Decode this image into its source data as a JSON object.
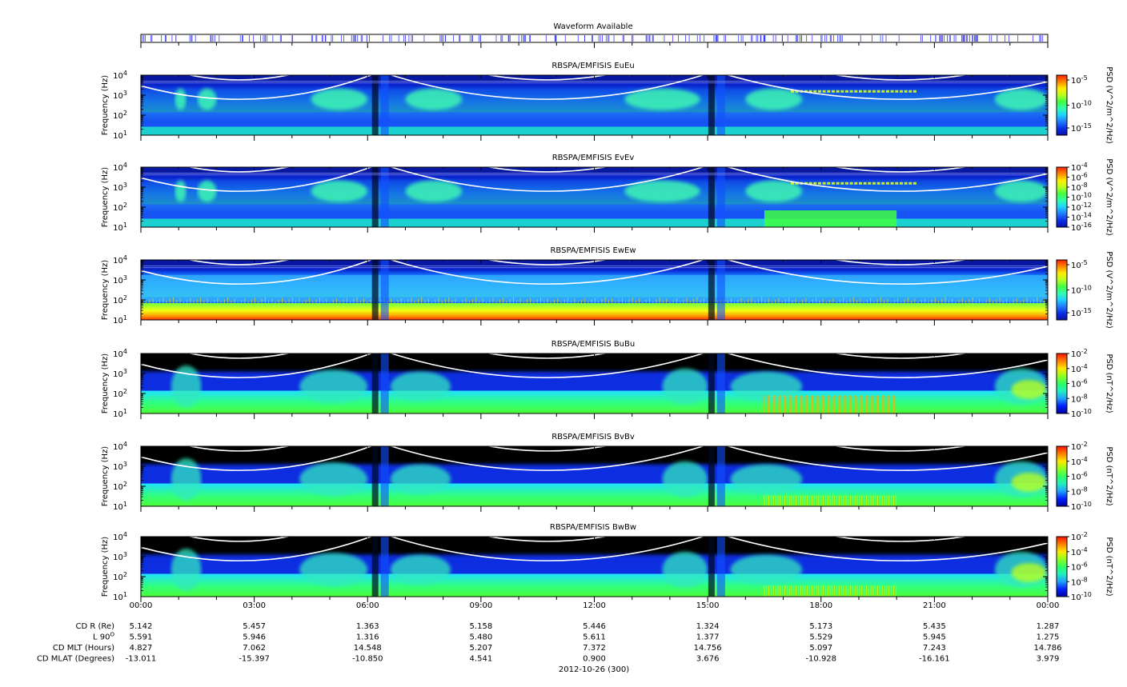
{
  "waveform": {
    "title": "Waveform Available",
    "color": "#3b3bff"
  },
  "panels": [
    {
      "title": "RBSPA/EMFISIS  EuEu",
      "ylabel": "Frequency (Hz)",
      "cbar_label": "PSD (V^2/m^2/Hz)",
      "cbar_ticks": [
        "10^-5",
        "10^-10",
        "10^-15"
      ],
      "cbar_range_log10": [
        -16,
        -4
      ],
      "kind": "E",
      "variant": 0
    },
    {
      "title": "RBSPA/EMFISIS  EvEv",
      "ylabel": "Frequency (Hz)",
      "cbar_label": "PSD (V^2/m^2/Hz)",
      "cbar_ticks": [
        "10^-4",
        "10^-6",
        "10^-8",
        "10^-10",
        "10^-12",
        "10^-14",
        "10^-16"
      ],
      "cbar_range_log10": [
        -16,
        -4
      ],
      "kind": "E",
      "variant": 1
    },
    {
      "title": "RBSPA/EMFISIS  EwEw",
      "ylabel": "Frequency (Hz)",
      "cbar_label": "PSD (V^2/m^2/Hz)",
      "cbar_ticks": [
        "10^-5",
        "10^-10",
        "10^-15"
      ],
      "cbar_range_log10": [
        -16,
        -4
      ],
      "kind": "Ew",
      "variant": 2
    },
    {
      "title": "RBSPA/EMFISIS  BuBu",
      "ylabel": "Frequency (Hz)",
      "cbar_label": "PSD (nT^2/Hz)",
      "cbar_ticks": [
        "10^-2",
        "10^-4",
        "10^-6",
        "10^-8",
        "10^-10"
      ],
      "cbar_range_log10": [
        -10,
        -2
      ],
      "kind": "B",
      "variant": 3
    },
    {
      "title": "RBSPA/EMFISIS  BvBv",
      "ylabel": "Frequency (Hz)",
      "cbar_label": "PSD (nT^2/Hz)",
      "cbar_ticks": [
        "10^-2",
        "10^-4",
        "10^-6",
        "10^-8",
        "10^-10"
      ],
      "cbar_range_log10": [
        -10,
        -2
      ],
      "kind": "B",
      "variant": 4
    },
    {
      "title": "RBSPA/EMFISIS  BwBw",
      "ylabel": "Frequency (Hz)",
      "cbar_label": "PSD (nT^2/Hz)",
      "cbar_ticks": [
        "10^-2",
        "10^-4",
        "10^-6",
        "10^-8",
        "10^-10"
      ],
      "cbar_range_log10": [
        -10,
        -2
      ],
      "kind": "B",
      "variant": 5
    }
  ],
  "chart_data": {
    "type": "heatmap",
    "y_ticks": [
      "10^1",
      "10^2",
      "10^3",
      "10^4"
    ],
    "ylim_hz": [
      10,
      10000
    ],
    "y_scale": "log",
    "x_ticks": [
      "00:00",
      "03:00",
      "06:00",
      "09:00",
      "12:00",
      "15:00",
      "18:00",
      "21:00",
      "00:00"
    ],
    "date_label": "2012-10-26 (300)",
    "ephemeris": {
      "rows": [
        {
          "label": "CD R (Re)",
          "values": [
            "5.142",
            "5.457",
            "1.363",
            "5.158",
            "5.446",
            "1.324",
            "5.173",
            "5.435",
            "1.287"
          ]
        },
        {
          "label": "L 90°",
          "label_main": "L 90",
          "label_sup": "O",
          "values": [
            "5.591",
            "5.946",
            "1.316",
            "5.480",
            "5.611",
            "1.377",
            "5.529",
            "5.945",
            "1.275"
          ]
        },
        {
          "label": "CD MLT (Hours)",
          "values": [
            "4.827",
            "7.062",
            "14.548",
            "5.207",
            "7.372",
            "14.756",
            "5.097",
            "7.243",
            "14.786"
          ]
        },
        {
          "label": "CD MLAT (Degrees)",
          "values": [
            "-13.011",
            "-15.397",
            "-10.850",
            "4.541",
            "0.900",
            "3.676",
            "-10.928",
            "-16.161",
            "3.979"
          ]
        }
      ]
    },
    "perigee_hours": [
      6.2,
      15.1
    ],
    "colormap": [
      "#0a10a8",
      "#0a2ee8",
      "#1e7aff",
      "#20d0ff",
      "#30ffb0",
      "#40ff40",
      "#b8ff20",
      "#ffee00",
      "#ff8800",
      "#ff2000"
    ]
  }
}
